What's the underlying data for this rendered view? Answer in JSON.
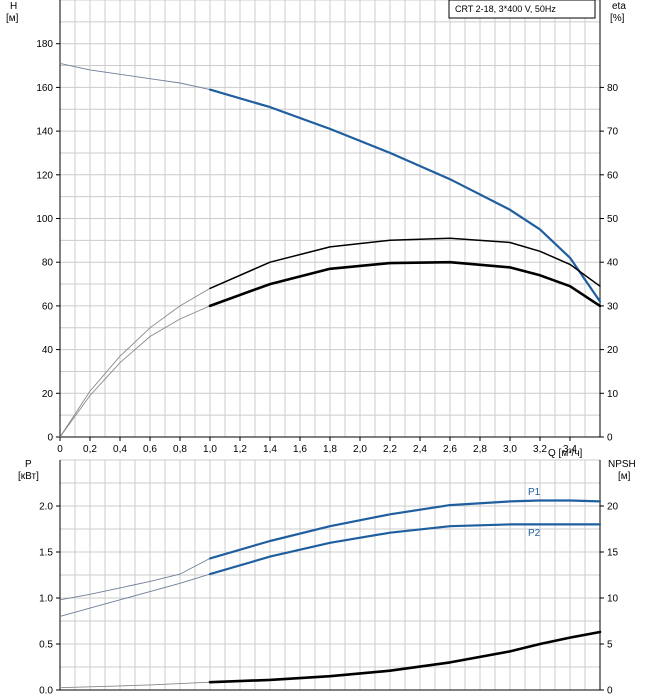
{
  "title_box": "CRT 2-18, 3*400 V, 50Hz",
  "colors": {
    "blue": "#1f5fa0",
    "black": "#000000",
    "grid": "#cccccc",
    "thin": "#6f7f99"
  },
  "chart_data": [
    {
      "type": "line",
      "panel": "top",
      "title": "CRT 2-18, 3*400 V, 50Hz",
      "xlabel": "Q [м³/ч]",
      "xlim": [
        0,
        3.6
      ],
      "x_ticks": [
        "0",
        "0,2",
        "0,4",
        "0,6",
        "0,8",
        "1,0",
        "1,2",
        "1,4",
        "1,6",
        "1,8",
        "2,0",
        "2,2",
        "2,4",
        "2,6",
        "2,8",
        "3,0",
        "3,2",
        "3,4"
      ],
      "y_left": {
        "label": "H",
        "unit": "[м]",
        "lim": [
          0,
          200
        ],
        "ticks": [
          "0",
          "20",
          "40",
          "60",
          "80",
          "100",
          "120",
          "140",
          "160",
          "180"
        ]
      },
      "y_right": {
        "label": "eta",
        "unit": "[%]",
        "lim": [
          0,
          100
        ],
        "ticks": [
          "0",
          "10",
          "20",
          "30",
          "40",
          "50",
          "60",
          "70",
          "80"
        ]
      },
      "grid": true,
      "series": [
        {
          "axis": "left",
          "role": "head",
          "color": "#1f5fa0",
          "x": [
            0,
            0.2,
            0.4,
            0.6,
            0.8,
            1.0,
            1.4,
            1.8,
            2.2,
            2.6,
            3.0,
            3.2,
            3.4,
            3.6
          ],
          "y": [
            171,
            168,
            166,
            164,
            162,
            159,
            151,
            141,
            130,
            118,
            104,
            95,
            82,
            62
          ]
        },
        {
          "axis": "right",
          "role": "efficiency-1",
          "color": "#000000",
          "x": [
            0,
            0.2,
            0.4,
            0.6,
            0.8,
            1.0,
            1.4,
            1.8,
            2.2,
            2.6,
            3.0,
            3.2,
            3.4,
            3.6
          ],
          "y": [
            0,
            10.5,
            18.5,
            25,
            30,
            34,
            40,
            43.5,
            45,
            45.5,
            44.5,
            42.5,
            39.5,
            34.5
          ]
        },
        {
          "axis": "right",
          "role": "efficiency-2",
          "color": "#000000",
          "x": [
            0,
            0.2,
            0.4,
            0.6,
            0.8,
            1.0,
            1.4,
            1.8,
            2.2,
            2.6,
            3.0,
            3.2,
            3.4,
            3.6
          ],
          "y": [
            0,
            9.5,
            17,
            23,
            27,
            30,
            35,
            38.5,
            39.8,
            40,
            38.8,
            37,
            34.5,
            30
          ]
        }
      ]
    },
    {
      "type": "line",
      "panel": "bottom",
      "xlim": [
        0,
        3.6
      ],
      "y_left": {
        "label": "P",
        "unit": "[кВт]",
        "lim": [
          0,
          2.5
        ],
        "ticks": [
          "0.0",
          "0.5",
          "1.0",
          "1.5",
          "2.0"
        ]
      },
      "y_right": {
        "label": "NPSH",
        "unit": "[м]",
        "lim": [
          0,
          25
        ],
        "ticks": [
          "0",
          "5",
          "10",
          "15",
          "20"
        ]
      },
      "grid": true,
      "series": [
        {
          "name": "P1",
          "axis": "left",
          "color": "#1f5fa0",
          "x": [
            0,
            0.2,
            0.4,
            0.6,
            0.8,
            1.0,
            1.4,
            1.8,
            2.2,
            2.6,
            3.0,
            3.2,
            3.4,
            3.6
          ],
          "y": [
            0.98,
            1.04,
            1.11,
            1.18,
            1.26,
            1.43,
            1.62,
            1.78,
            1.91,
            2.01,
            2.05,
            2.06,
            2.06,
            2.05
          ]
        },
        {
          "name": "P2",
          "axis": "left",
          "color": "#1f5fa0",
          "x": [
            0,
            0.2,
            0.4,
            0.6,
            0.8,
            1.0,
            1.4,
            1.8,
            2.2,
            2.6,
            3.0,
            3.2,
            3.4,
            3.6
          ],
          "y": [
            0.8,
            0.89,
            0.98,
            1.07,
            1.16,
            1.26,
            1.45,
            1.6,
            1.71,
            1.78,
            1.8,
            1.8,
            1.8,
            1.8
          ]
        },
        {
          "axis": "right",
          "role": "npsh",
          "color": "#000000",
          "x": [
            0,
            0.2,
            0.4,
            0.6,
            0.8,
            1.0,
            1.4,
            1.8,
            2.2,
            2.6,
            3.0,
            3.2,
            3.4,
            3.6
          ],
          "y": [
            0.25,
            0.35,
            0.45,
            0.55,
            0.7,
            0.85,
            1.1,
            1.5,
            2.1,
            3.0,
            4.2,
            5.0,
            5.7,
            6.3
          ]
        }
      ]
    }
  ]
}
